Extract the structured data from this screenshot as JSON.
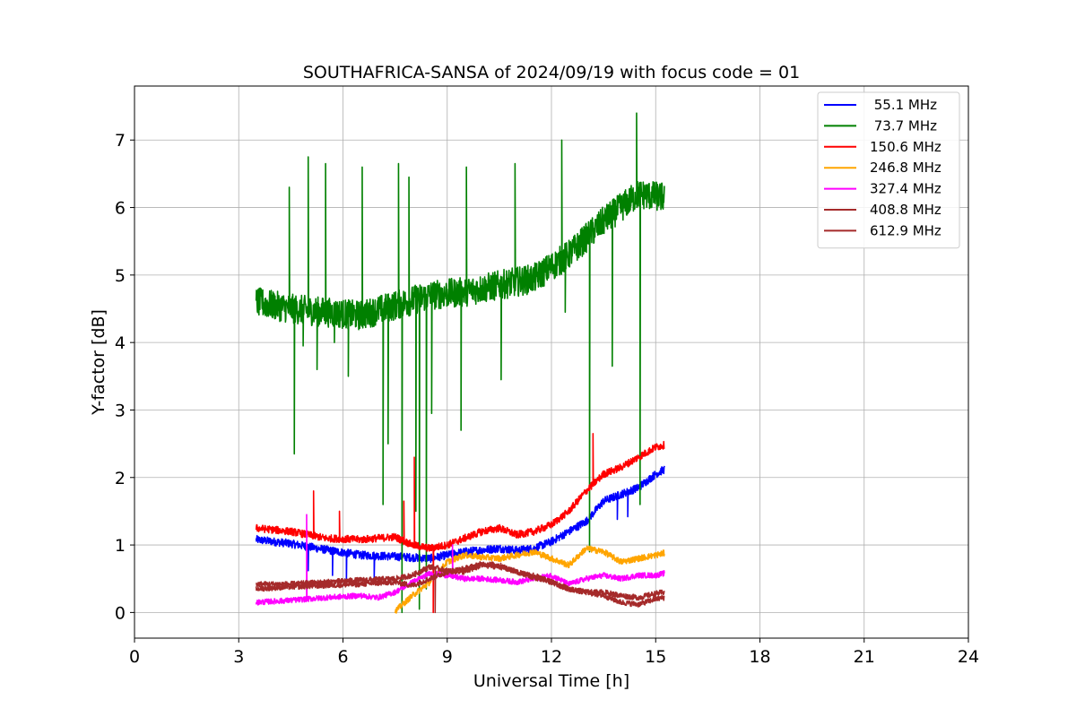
{
  "chart_data": {
    "type": "line",
    "title": "SOUTHAFRICA-SANSA of 2024/09/19 with focus code = 01",
    "xlabel": "Universal Time [h]",
    "ylabel": "Y-factor [dB]",
    "xlim": [
      0,
      24
    ],
    "ylim": [
      -0.38,
      7.8
    ],
    "xticks": [
      0,
      3,
      6,
      9,
      12,
      15,
      18,
      21,
      24
    ],
    "yticks": [
      0,
      1,
      2,
      3,
      4,
      5,
      6,
      7
    ],
    "grid": true,
    "legend_position": "top-right",
    "series": [
      {
        "name": " 55.1 MHz",
        "color": "#0000ff",
        "noise": 0.06,
        "x": [
          3.5,
          4.5,
          5.5,
          6.5,
          7.5,
          8.5,
          9.5,
          10.5,
          11.0,
          11.5,
          12.0,
          12.5,
          13.0,
          13.5,
          14.0,
          14.5,
          15.0,
          15.25
        ],
        "y": [
          1.08,
          1.02,
          0.93,
          0.85,
          0.83,
          0.8,
          0.9,
          0.95,
          0.92,
          0.95,
          1.05,
          1.2,
          1.35,
          1.65,
          1.75,
          1.85,
          2.05,
          2.12
        ],
        "spikes": [
          [
            5.0,
            0.62
          ],
          [
            5.7,
            0.55
          ],
          [
            6.1,
            0.45
          ],
          [
            6.9,
            0.52
          ],
          [
            13.9,
            1.38
          ],
          [
            14.2,
            1.42
          ]
        ]
      },
      {
        "name": " 73.7 MHz",
        "color": "#008000",
        "noise": 0.22,
        "x": [
          3.5,
          4.5,
          5.5,
          6.5,
          7.5,
          8.5,
          9.5,
          10.5,
          11.5,
          12.5,
          13.5,
          14.5,
          15.25
        ],
        "y": [
          4.6,
          4.5,
          4.45,
          4.4,
          4.55,
          4.7,
          4.75,
          4.85,
          4.95,
          5.3,
          5.8,
          6.2,
          6.15
        ],
        "spikes": [
          [
            4.45,
            6.3
          ],
          [
            4.6,
            2.35
          ],
          [
            4.85,
            3.95
          ],
          [
            5.0,
            6.75
          ],
          [
            5.25,
            3.6
          ],
          [
            5.5,
            6.65
          ],
          [
            5.75,
            4.0
          ],
          [
            6.15,
            3.5
          ],
          [
            6.55,
            6.6
          ],
          [
            7.15,
            1.6
          ],
          [
            7.3,
            2.5
          ],
          [
            7.6,
            6.65
          ],
          [
            7.7,
            0.0
          ],
          [
            7.9,
            6.45
          ],
          [
            8.1,
            1.5
          ],
          [
            8.2,
            0.05
          ],
          [
            8.4,
            0.35
          ],
          [
            8.55,
            2.95
          ],
          [
            9.4,
            2.7
          ],
          [
            9.55,
            6.6
          ],
          [
            10.55,
            3.45
          ],
          [
            10.95,
            6.65
          ],
          [
            12.3,
            7.0
          ],
          [
            12.4,
            4.45
          ],
          [
            13.1,
            0.9
          ],
          [
            13.75,
            3.65
          ],
          [
            14.45,
            7.4
          ],
          [
            14.55,
            1.6
          ]
        ]
      },
      {
        "name": "150.6 MHz",
        "color": "#ff0000",
        "noise": 0.055,
        "x": [
          3.5,
          4.5,
          5.5,
          6.5,
          7.5,
          8.0,
          8.5,
          9.0,
          9.5,
          10.0,
          10.5,
          11.0,
          11.5,
          12.0,
          12.5,
          13.0,
          13.5,
          14.0,
          14.5,
          15.0,
          15.25
        ],
        "y": [
          1.25,
          1.2,
          1.1,
          1.08,
          1.12,
          1.0,
          0.95,
          1.0,
          1.1,
          1.2,
          1.25,
          1.15,
          1.2,
          1.3,
          1.5,
          1.8,
          2.05,
          2.15,
          2.3,
          2.45,
          2.48
        ],
        "spikes": [
          [
            5.15,
            1.8
          ],
          [
            5.9,
            1.5
          ],
          [
            7.75,
            1.65
          ],
          [
            8.05,
            2.3
          ],
          [
            8.6,
            0.0
          ],
          [
            13.2,
            2.65
          ]
        ]
      },
      {
        "name": "246.8 MHz",
        "color": "#ffa500",
        "noise": 0.045,
        "x": [
          7.5,
          8.0,
          8.5,
          9.0,
          9.5,
          10.0,
          10.5,
          11.0,
          11.5,
          12.0,
          12.5,
          13.0,
          13.5,
          14.0,
          14.5,
          15.0,
          15.25
        ],
        "y": [
          0.02,
          0.25,
          0.45,
          0.75,
          0.85,
          0.82,
          0.8,
          0.85,
          0.9,
          0.8,
          0.7,
          0.95,
          0.9,
          0.75,
          0.8,
          0.85,
          0.88
        ],
        "spikes": []
      },
      {
        "name": "327.4 MHz",
        "color": "#ff00ff",
        "noise": 0.04,
        "x": [
          3.5,
          4.5,
          5.5,
          6.5,
          7.0,
          7.5,
          8.0,
          8.5,
          9.0,
          9.5,
          10.0,
          10.5,
          11.0,
          11.5,
          12.0,
          12.5,
          13.0,
          13.5,
          14.0,
          14.5,
          15.0,
          15.25
        ],
        "y": [
          0.15,
          0.18,
          0.22,
          0.25,
          0.22,
          0.3,
          0.45,
          0.58,
          0.55,
          0.5,
          0.5,
          0.48,
          0.45,
          0.5,
          0.55,
          0.42,
          0.5,
          0.55,
          0.5,
          0.55,
          0.55,
          0.58
        ],
        "spikes": [
          [
            4.95,
            1.45
          ],
          [
            9.15,
            1.0
          ]
        ]
      },
      {
        "name": "408.8 MHz",
        "color": "#a52a2a",
        "noise": 0.04,
        "x": [
          3.5,
          4.5,
          5.5,
          6.5,
          7.5,
          8.0,
          8.5,
          9.0,
          9.5,
          10.0,
          10.5,
          11.0,
          11.5,
          12.0,
          12.5,
          13.0,
          13.5,
          14.0,
          14.5,
          15.0,
          15.25
        ],
        "y": [
          0.35,
          0.38,
          0.4,
          0.42,
          0.45,
          0.4,
          0.5,
          0.6,
          0.65,
          0.72,
          0.7,
          0.6,
          0.55,
          0.45,
          0.35,
          0.3,
          0.25,
          0.15,
          0.12,
          0.2,
          0.22
        ],
        "spikes": []
      },
      {
        "name": "612.9 MHz",
        "color": "#a52a2a",
        "noise": 0.04,
        "x": [
          3.5,
          4.5,
          5.5,
          6.5,
          7.5,
          8.0,
          8.5,
          9.0,
          9.5,
          10.0,
          10.5,
          11.0,
          11.5,
          12.0,
          12.5,
          13.0,
          13.5,
          14.0,
          14.5,
          15.0,
          15.25
        ],
        "y": [
          0.42,
          0.42,
          0.45,
          0.48,
          0.5,
          0.55,
          0.68,
          0.62,
          0.6,
          0.7,
          0.68,
          0.6,
          0.52,
          0.45,
          0.35,
          0.3,
          0.3,
          0.25,
          0.22,
          0.28,
          0.3
        ],
        "spikes": [
          [
            8.65,
            0.0
          ]
        ]
      }
    ]
  }
}
